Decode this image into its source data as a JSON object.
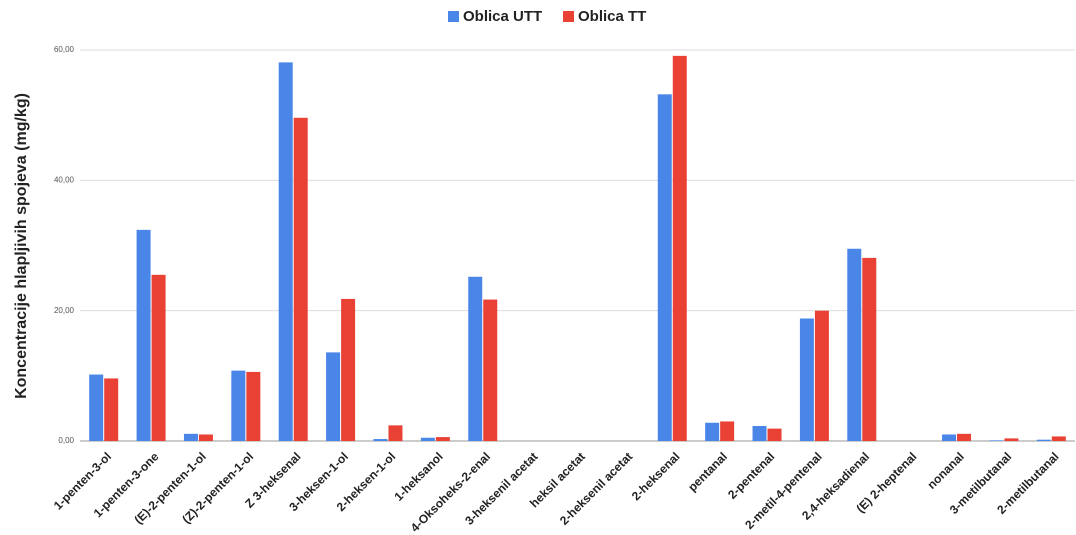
{
  "chart_data": {
    "type": "bar",
    "ylabel": "Koncentracije hlapljivih spojeva (mg/kg)",
    "categories": [
      "1-penten-3-ol",
      "1-penten-3-one",
      "(E)-2-penten-1-ol",
      "(Z)-2-penten-1-ol",
      "Z 3-heksenal",
      "3-heksen-1-ol",
      "2-heksen-1-ol",
      "1-heksanol",
      "4-Oksoheks-2-enal",
      "3-heksenil acetat",
      "heksil acetat",
      "2-heksenil acetat",
      "2-heksenal",
      "pentanal",
      "2-pentenal",
      "2-metil-4-pentenal",
      "2,4-heksadienal",
      "(E) 2-heptenal",
      "nonanal",
      "3-metilbutanal",
      "2-metilbutanal"
    ],
    "series": [
      {
        "name": "Oblica UTT",
        "color": "#4a86e8",
        "values": [
          10.2,
          32.4,
          1.1,
          10.8,
          58.1,
          13.6,
          0.3,
          0.5,
          25.2,
          0,
          0,
          0,
          53.2,
          2.8,
          2.3,
          18.8,
          29.5,
          0,
          1.0,
          0.1,
          0.2
        ]
      },
      {
        "name": "Oblica TT",
        "color": "#e94235",
        "values": [
          9.6,
          25.5,
          1.0,
          10.6,
          49.6,
          21.8,
          2.4,
          0.6,
          21.7,
          0,
          0,
          0,
          59.1,
          3.0,
          1.9,
          20.0,
          28.1,
          0,
          1.1,
          0.4,
          0.7
        ]
      }
    ],
    "ylim": [
      0,
      60
    ],
    "yticks": [
      {
        "value": 0,
        "label": "0,00"
      },
      {
        "value": 20,
        "label": "20,00"
      },
      {
        "value": 40,
        "label": "40,00"
      },
      {
        "value": 60,
        "label": "60,00"
      }
    ],
    "grid": true
  }
}
